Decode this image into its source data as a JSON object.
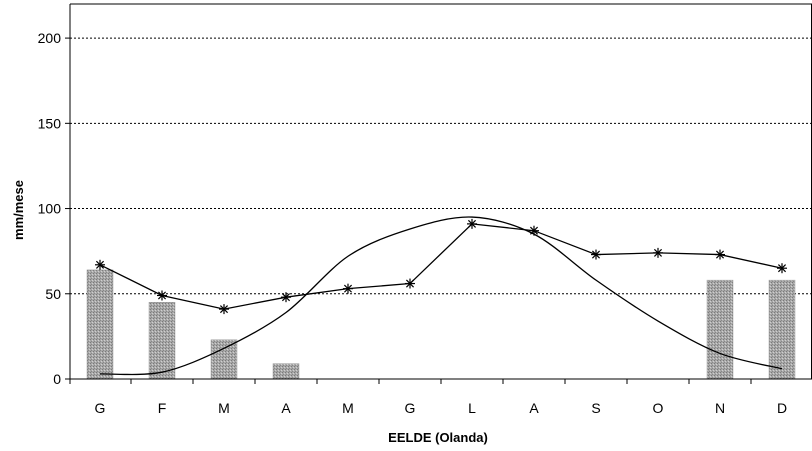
{
  "chart_data": {
    "type": "bar",
    "categories": [
      "G",
      "F",
      "M",
      "A",
      "M",
      "G",
      "L",
      "A",
      "S",
      "O",
      "N",
      "D"
    ],
    "xlabel": "EELDE (Olanda)",
    "ylabel": "mm/mese",
    "ylim": [
      0,
      220
    ],
    "yticks": [
      0,
      50,
      100,
      150,
      200
    ],
    "grid": "horizontal dotted",
    "legend": "none",
    "series": [
      {
        "type": "bar",
        "values": [
          64,
          45,
          23,
          9,
          0,
          0,
          0,
          0,
          0,
          0,
          58,
          58
        ],
        "color": "#9a9a9a"
      },
      {
        "type": "line",
        "marker": "asterisk",
        "values": [
          67,
          49,
          41,
          48,
          53,
          56,
          91,
          87,
          73,
          74,
          73,
          65
        ],
        "color": "#000000"
      },
      {
        "type": "line",
        "marker": "none",
        "values": [
          3,
          4,
          18,
          39,
          72,
          88,
          95,
          85,
          58,
          34,
          15,
          6
        ],
        "color": "#000000"
      }
    ]
  }
}
